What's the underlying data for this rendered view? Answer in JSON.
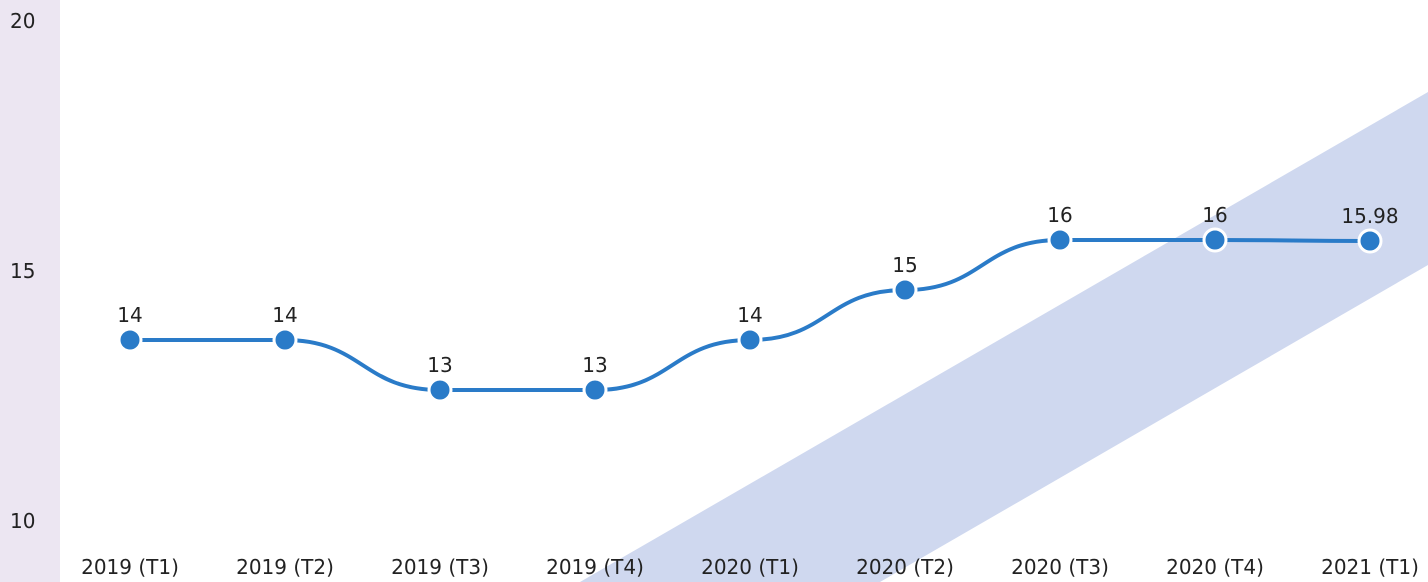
{
  "chart_data": {
    "type": "line",
    "categories": [
      "2019 (T1)",
      "2019 (T2)",
      "2019 (T3)",
      "2019 (T4)",
      "2020 (T1)",
      "2020 (T2)",
      "2020 (T3)",
      "2020 (T4)",
      "2021 (T1)"
    ],
    "series": [
      {
        "color": "#2a7bc8",
        "values": [
          14,
          14,
          13,
          13,
          14,
          15,
          16,
          16,
          15.98
        ]
      }
    ],
    "ylim": [
      10,
      20
    ],
    "yticks": [
      10,
      15,
      20
    ],
    "grid": false
  }
}
